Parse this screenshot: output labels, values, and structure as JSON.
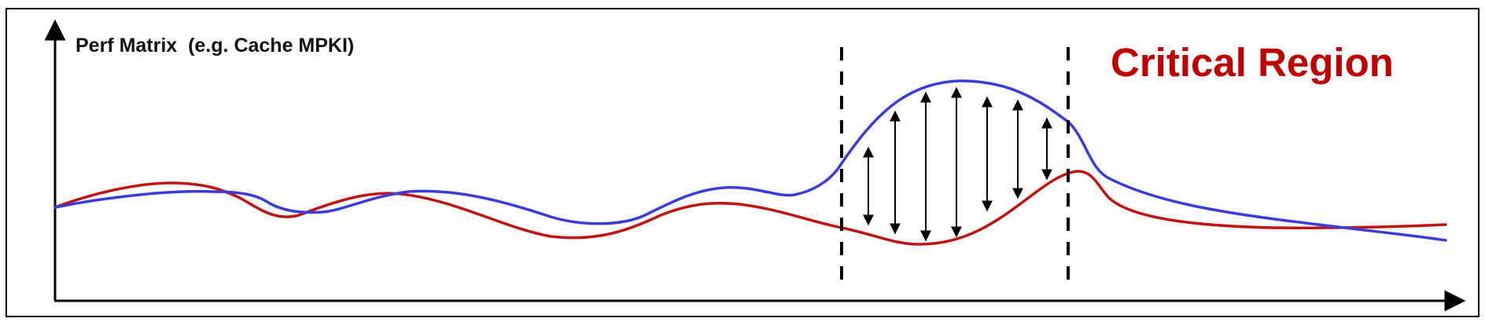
{
  "title": "Critical Region",
  "y_axis_label": "Perf Matrix  (e.g. Cache MPKI)",
  "colors": {
    "series_a": "#3b3bdc",
    "series_b": "#c01414",
    "region_title": "#c00000",
    "axes": "#000000",
    "frame": "#000000"
  },
  "icons": {
    "gap_marker": "double-headed-arrow",
    "axis_end": "arrowhead"
  }
}
